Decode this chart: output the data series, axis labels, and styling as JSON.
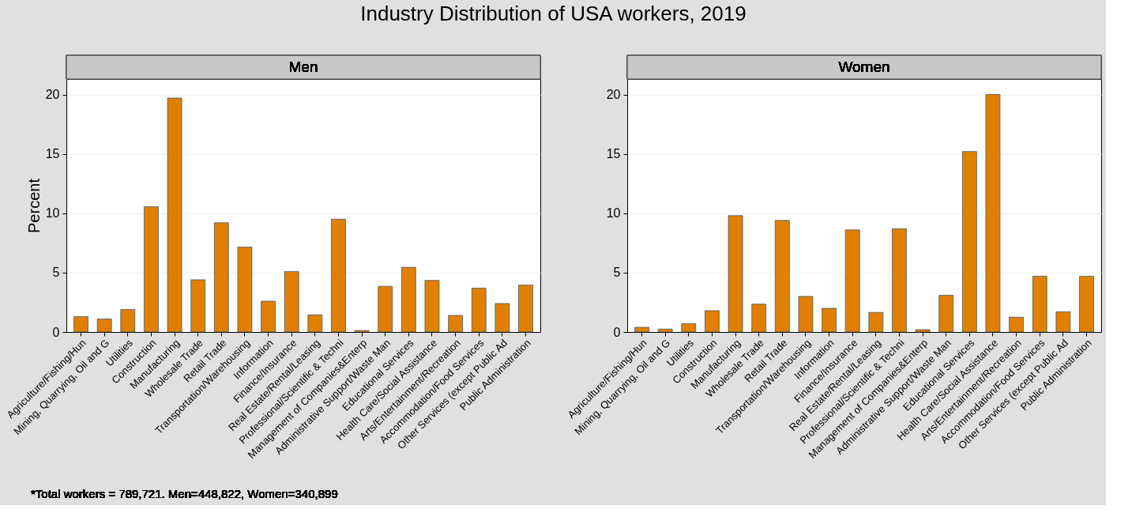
{
  "chart_data": [
    {
      "type": "bar",
      "title": "Industry Distribution of USA workers, 2019",
      "subtitle": "Men",
      "ylabel": "Percent",
      "categories": [
        "Agriculture/Fishing/Hun",
        "Mining, Quarrying, Oil and G",
        "Utilities",
        "Construction",
        "Manufacturing",
        "Wholesale Trade",
        "Retail Trade",
        "Transportation/Warehousing",
        "Information",
        "Finance/Insurance",
        "Real Estate/Rental/Leasing",
        "Professional/Scientific & Techni",
        "Management of Companies&Enterp",
        "Administrative Support/Waste Man",
        "Educational Services",
        "Health Care/Social Assistance",
        "Arts/Entertainment/Recreation",
        "Accommodation/Food Services",
        "Other Services (except Public Ad",
        "Public Administration"
      ],
      "values": [
        1.3,
        1.1,
        1.9,
        10.55,
        19.7,
        4.4,
        9.2,
        7.15,
        2.6,
        5.1,
        1.45,
        9.5,
        0.13,
        3.85,
        5.45,
        4.35,
        1.4,
        3.7,
        2.4,
        3.95
      ],
      "color": "#e17f00",
      "ylim": [
        0,
        21.3
      ],
      "yticks": [
        0,
        5,
        10,
        15,
        20
      ],
      "grid": "y",
      "annotations": [
        "*Total workers = 789,721. Men=448,822, Women=340,899"
      ]
    },
    {
      "type": "bar",
      "subtitle": "Women",
      "categories": [
        "Agriculture/Fishing/Hun",
        "Mining, Quarrying, Oil and G",
        "Utilities",
        "Construction",
        "Manufacturing",
        "Wholesale Trade",
        "Retail Trade",
        "Transportation/Warehousing",
        "Information",
        "Finance/Insurance",
        "Real Estate/Rental/Leasing",
        "Professional/Scientific & Techni",
        "Management of Companies&Enterp",
        "Administrative Support/Waste Man",
        "Educational Services",
        "Health Care/Social Assistance",
        "Arts/Entertainment/Recreation",
        "Accommodation/Food Services",
        "Other Services (except Public Ad",
        "Public Administration"
      ],
      "values": [
        0.4,
        0.25,
        0.7,
        1.8,
        9.8,
        2.35,
        9.4,
        3.0,
        2.0,
        8.6,
        1.65,
        8.7,
        0.2,
        3.1,
        15.2,
        20.0,
        1.25,
        4.7,
        1.7,
        4.7
      ],
      "color": "#e17f00",
      "ylim": [
        0,
        21.3
      ],
      "yticks": [
        0,
        5,
        10,
        15,
        20
      ],
      "grid": "y"
    }
  ]
}
